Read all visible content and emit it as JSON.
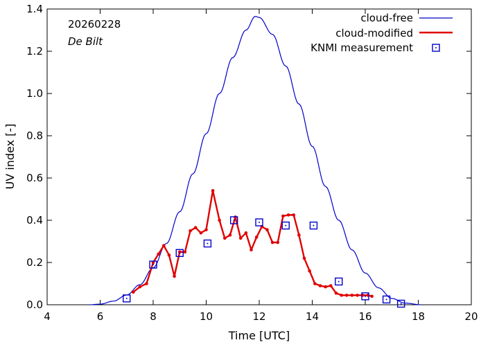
{
  "chart_data": {
    "type": "line",
    "xlabel": "Time  [UTC]",
    "ylabel": "UV index  [-]",
    "xlim": [
      4,
      20
    ],
    "ylim": [
      0,
      1.4
    ],
    "xticks": [
      "4",
      "6",
      "8",
      "10",
      "12",
      "14",
      "16",
      "18",
      "20"
    ],
    "yticks": [
      "0.0",
      "0.2",
      "0.4",
      "0.6",
      "0.8",
      "1.0",
      "1.2",
      "1.4"
    ],
    "annotations": {
      "date": "20260228",
      "location": "De Bilt"
    },
    "legend": {
      "position": "top-right"
    },
    "series": [
      {
        "name": "cloud-free",
        "kind": "line",
        "color": "#0000cc",
        "peak_x": 11.85,
        "peak_y": 1.365,
        "start_x": 5.6,
        "end_x": 18.1,
        "x": [
          5.6,
          6.0,
          6.5,
          7.0,
          7.5,
          8.0,
          8.5,
          9.0,
          9.5,
          10.0,
          10.5,
          11.0,
          11.5,
          11.85,
          12.0,
          12.5,
          13.0,
          13.5,
          14.0,
          14.5,
          15.0,
          15.5,
          16.0,
          16.5,
          17.0,
          17.5,
          18.1
        ],
        "y": [
          0.0,
          0.003,
          0.017,
          0.046,
          0.095,
          0.175,
          0.29,
          0.44,
          0.62,
          0.81,
          1.0,
          1.17,
          1.3,
          1.365,
          1.36,
          1.28,
          1.13,
          0.95,
          0.75,
          0.56,
          0.4,
          0.26,
          0.15,
          0.08,
          0.03,
          0.008,
          0.0
        ]
      },
      {
        "name": "cloud-modified",
        "kind": "line-markers",
        "color": "#e00000",
        "x": [
          7.25,
          7.5,
          7.75,
          8.0,
          8.2,
          8.4,
          8.6,
          8.8,
          9.0,
          9.2,
          9.4,
          9.6,
          9.8,
          10.0,
          10.25,
          10.5,
          10.7,
          10.9,
          11.1,
          11.3,
          11.5,
          11.7,
          11.9,
          12.1,
          12.3,
          12.5,
          12.7,
          12.9,
          13.1,
          13.3,
          13.5,
          13.7,
          13.9,
          14.1,
          14.3,
          14.5,
          14.7,
          14.9,
          15.1,
          15.3,
          15.5,
          15.7,
          15.9,
          16.1,
          16.25
        ],
        "y": [
          0.06,
          0.085,
          0.1,
          0.2,
          0.24,
          0.28,
          0.235,
          0.135,
          0.25,
          0.25,
          0.35,
          0.365,
          0.34,
          0.355,
          0.54,
          0.4,
          0.315,
          0.33,
          0.415,
          0.315,
          0.34,
          0.26,
          0.32,
          0.37,
          0.355,
          0.295,
          0.295,
          0.42,
          0.425,
          0.425,
          0.33,
          0.22,
          0.16,
          0.1,
          0.09,
          0.085,
          0.09,
          0.055,
          0.045,
          0.045,
          0.045,
          0.045,
          0.045,
          0.045,
          0.04
        ]
      },
      {
        "name": "KNMI measurement",
        "kind": "markers",
        "color": "#0000cc",
        "x": [
          7.0,
          8.0,
          9.0,
          10.05,
          11.05,
          12.0,
          13.0,
          14.05,
          15.0,
          16.0,
          16.8,
          17.35
        ],
        "y": [
          0.03,
          0.19,
          0.245,
          0.29,
          0.4,
          0.39,
          0.375,
          0.375,
          0.11,
          0.04,
          0.025,
          0.005
        ]
      }
    ]
  }
}
